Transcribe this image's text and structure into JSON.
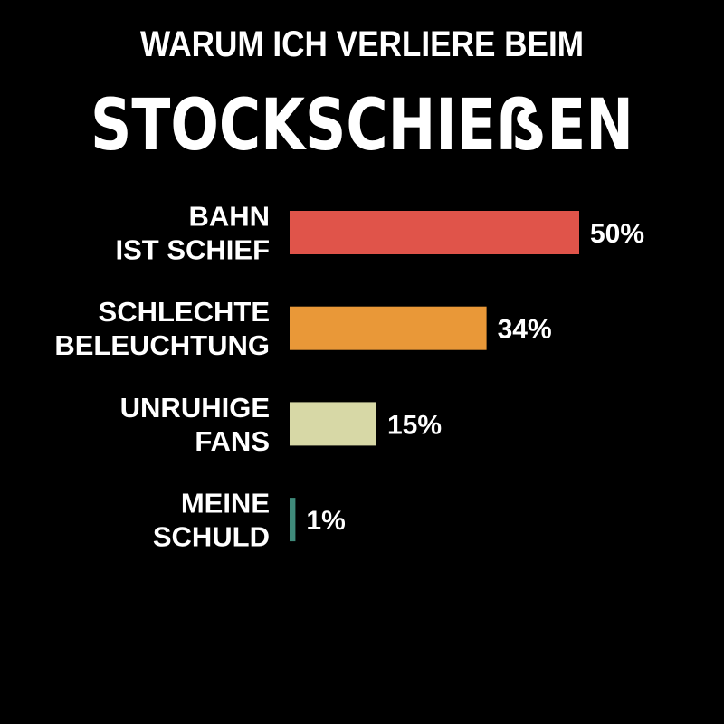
{
  "chart_data": {
    "type": "hbar",
    "title": "WARUM ICH VERLIERE BEIM",
    "subtitle": "STOCKSCHIEẞEN",
    "categories": [
      "BAHN\nIST SCHIEF",
      "SCHLECHTE\nBELEUCHTUNG",
      "UNRUHIGE\nFANS",
      "MEINE\nSCHULD"
    ],
    "values": [
      50,
      34,
      15,
      1
    ],
    "value_labels": [
      "50%",
      "34%",
      "15%",
      "1%"
    ],
    "colors": [
      "#e0544a",
      "#e99838",
      "#d7d8a6",
      "#3f8a7a"
    ]
  }
}
